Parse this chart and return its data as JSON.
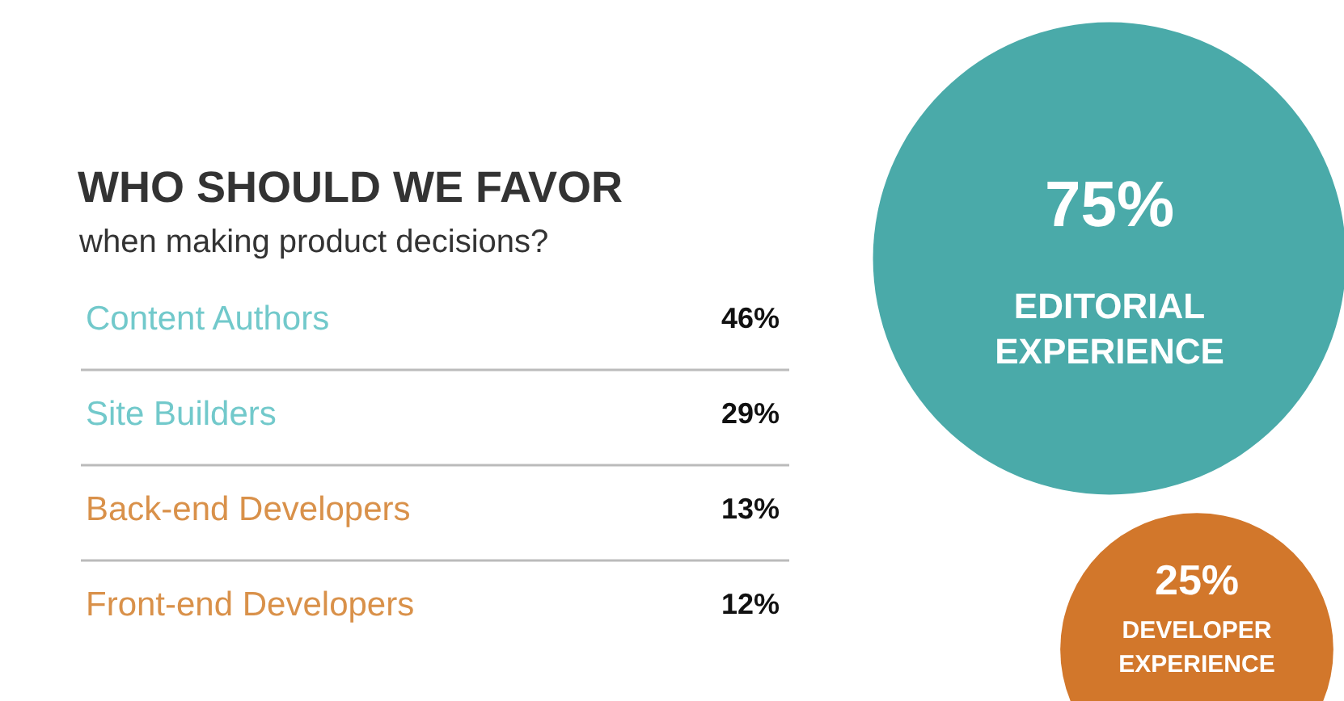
{
  "chart_data": [
    {
      "type": "other",
      "title": "WHO SHOULD WE FAVOR",
      "subtitle": "when making product decisions?",
      "categories": [
        "Content Authors",
        "Site Builders",
        "Back-end Developers",
        "Front-end Developers"
      ],
      "values": [
        46,
        29,
        13,
        12
      ],
      "value_labels": [
        "46%",
        "29%",
        "13%",
        "12%"
      ],
      "colors": [
        "#72c9cb",
        "#72c9cb",
        "#d9914a",
        "#d9914a"
      ]
    },
    {
      "type": "other",
      "categories": [
        "EDITORIAL EXPERIENCE",
        "DEVELOPER EXPERIENCE"
      ],
      "values": [
        75,
        25
      ],
      "value_labels": [
        "75%",
        "25%"
      ],
      "colors": [
        "#4aaaa9",
        "#d2772b"
      ]
    }
  ]
}
